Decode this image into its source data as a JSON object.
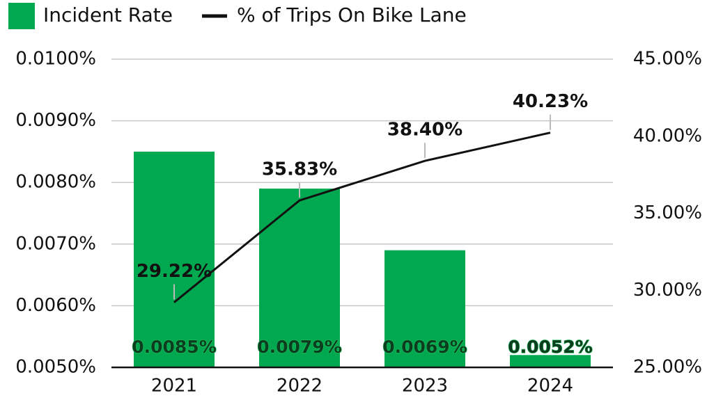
{
  "chart_data": {
    "type": "bar",
    "categories": [
      "2021",
      "2022",
      "2023",
      "2024"
    ],
    "series": [
      {
        "name": "Incident Rate",
        "type": "bar",
        "color": "#00a84f",
        "values": [
          0.0085,
          0.0079,
          0.0069,
          0.0052
        ],
        "value_labels": [
          "0.0085%",
          "0.0079%",
          "0.0069%",
          "0.0052%"
        ]
      },
      {
        "name": "% of Trips On Bike Lane",
        "type": "line",
        "axis": "y2",
        "color": "#111111",
        "values": [
          29.22,
          35.83,
          38.4,
          40.23
        ],
        "value_labels": [
          "29.22%",
          "35.83%",
          "38.40%",
          "40.23%"
        ]
      }
    ],
    "ylim": [
      0.005,
      0.01
    ],
    "yticks": [
      {
        "value": 0.005,
        "label": "0.0050%"
      },
      {
        "value": 0.006,
        "label": "0.0060%"
      },
      {
        "value": 0.007,
        "label": "0.0070%"
      },
      {
        "value": 0.008,
        "label": "0.0080%"
      },
      {
        "value": 0.009,
        "label": "0.0090%"
      },
      {
        "value": 0.01,
        "label": "0.0100%"
      }
    ],
    "y2lim": [
      25,
      45
    ],
    "y2ticks": [
      {
        "value": 25,
        "label": "25.00%"
      },
      {
        "value": 30,
        "label": "30.00%"
      },
      {
        "value": 35,
        "label": "35.00%"
      },
      {
        "value": 40,
        "label": "40.00%"
      },
      {
        "value": 45,
        "label": "45.00%"
      }
    ],
    "grid": true,
    "legend": "top-left"
  }
}
